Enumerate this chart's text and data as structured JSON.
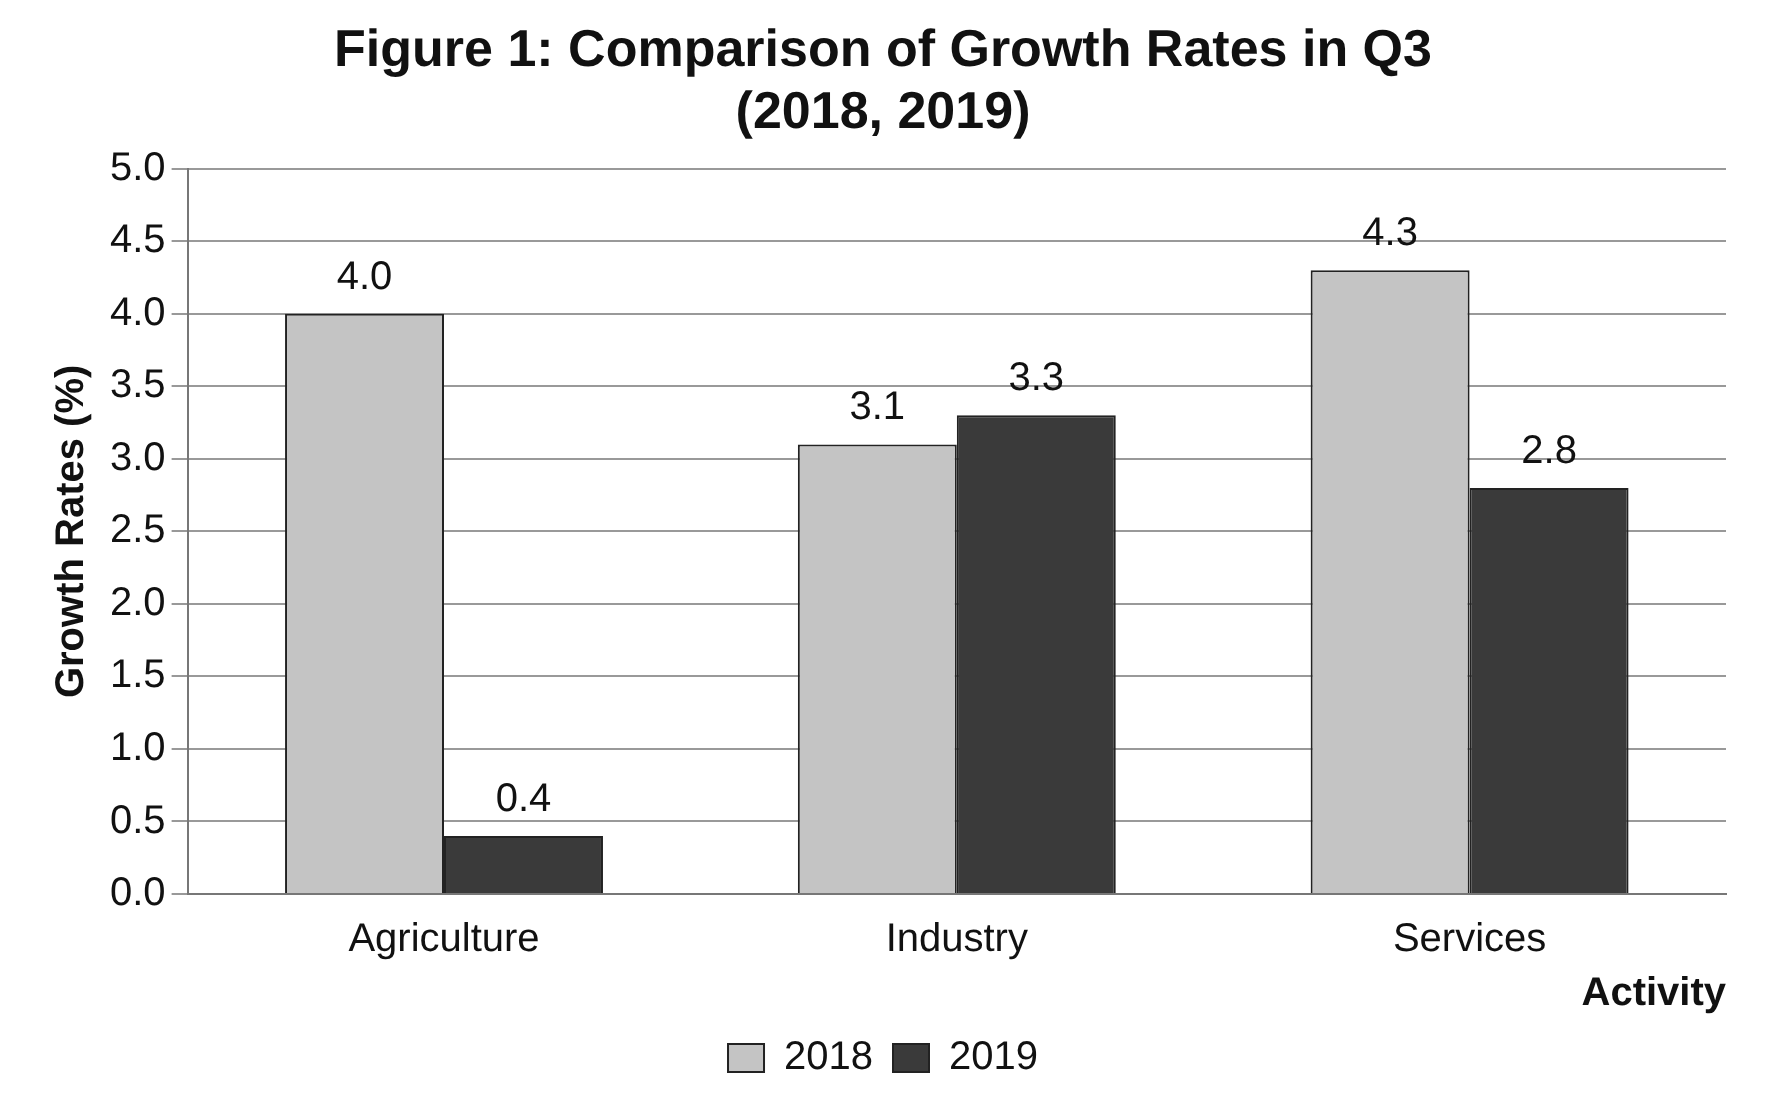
{
  "chart_data": {
    "type": "bar",
    "title": "Figure 1: Comparison of Growth Rates in Q3 (2018, 2019)",
    "xlabel": "Activity",
    "ylabel": "Growth Rates (%)",
    "categories": [
      "Agriculture",
      "Industry",
      "Services"
    ],
    "series": [
      {
        "name": "2018",
        "color": "#c4c4c4",
        "values": [
          4.0,
          3.1,
          4.3
        ]
      },
      {
        "name": "2019",
        "color": "#3a3a3a",
        "values": [
          0.4,
          3.3,
          2.8
        ]
      }
    ],
    "ylim": [
      0,
      5
    ],
    "yticks": [
      {
        "value": 0,
        "label": "0.0"
      },
      {
        "value": 0.5,
        "label": "0.5"
      },
      {
        "value": 1,
        "label": "1.0"
      },
      {
        "value": 1.5,
        "label": "1.5"
      },
      {
        "value": 2,
        "label": "2.0"
      },
      {
        "value": 2.5,
        "label": "2.5"
      },
      {
        "value": 3,
        "label": "3.0"
      },
      {
        "value": 3.5,
        "label": "3.5"
      },
      {
        "value": 4,
        "label": "4.0"
      },
      {
        "value": 4.5,
        "label": "4.5"
      },
      {
        "value": 5,
        "label": "5.0"
      }
    ],
    "value_labels": [
      [
        "4.0",
        "3.1",
        "4.3"
      ],
      [
        "0.4",
        "3.3",
        "2.8"
      ]
    ],
    "grid": "y",
    "legend": "bottom"
  }
}
